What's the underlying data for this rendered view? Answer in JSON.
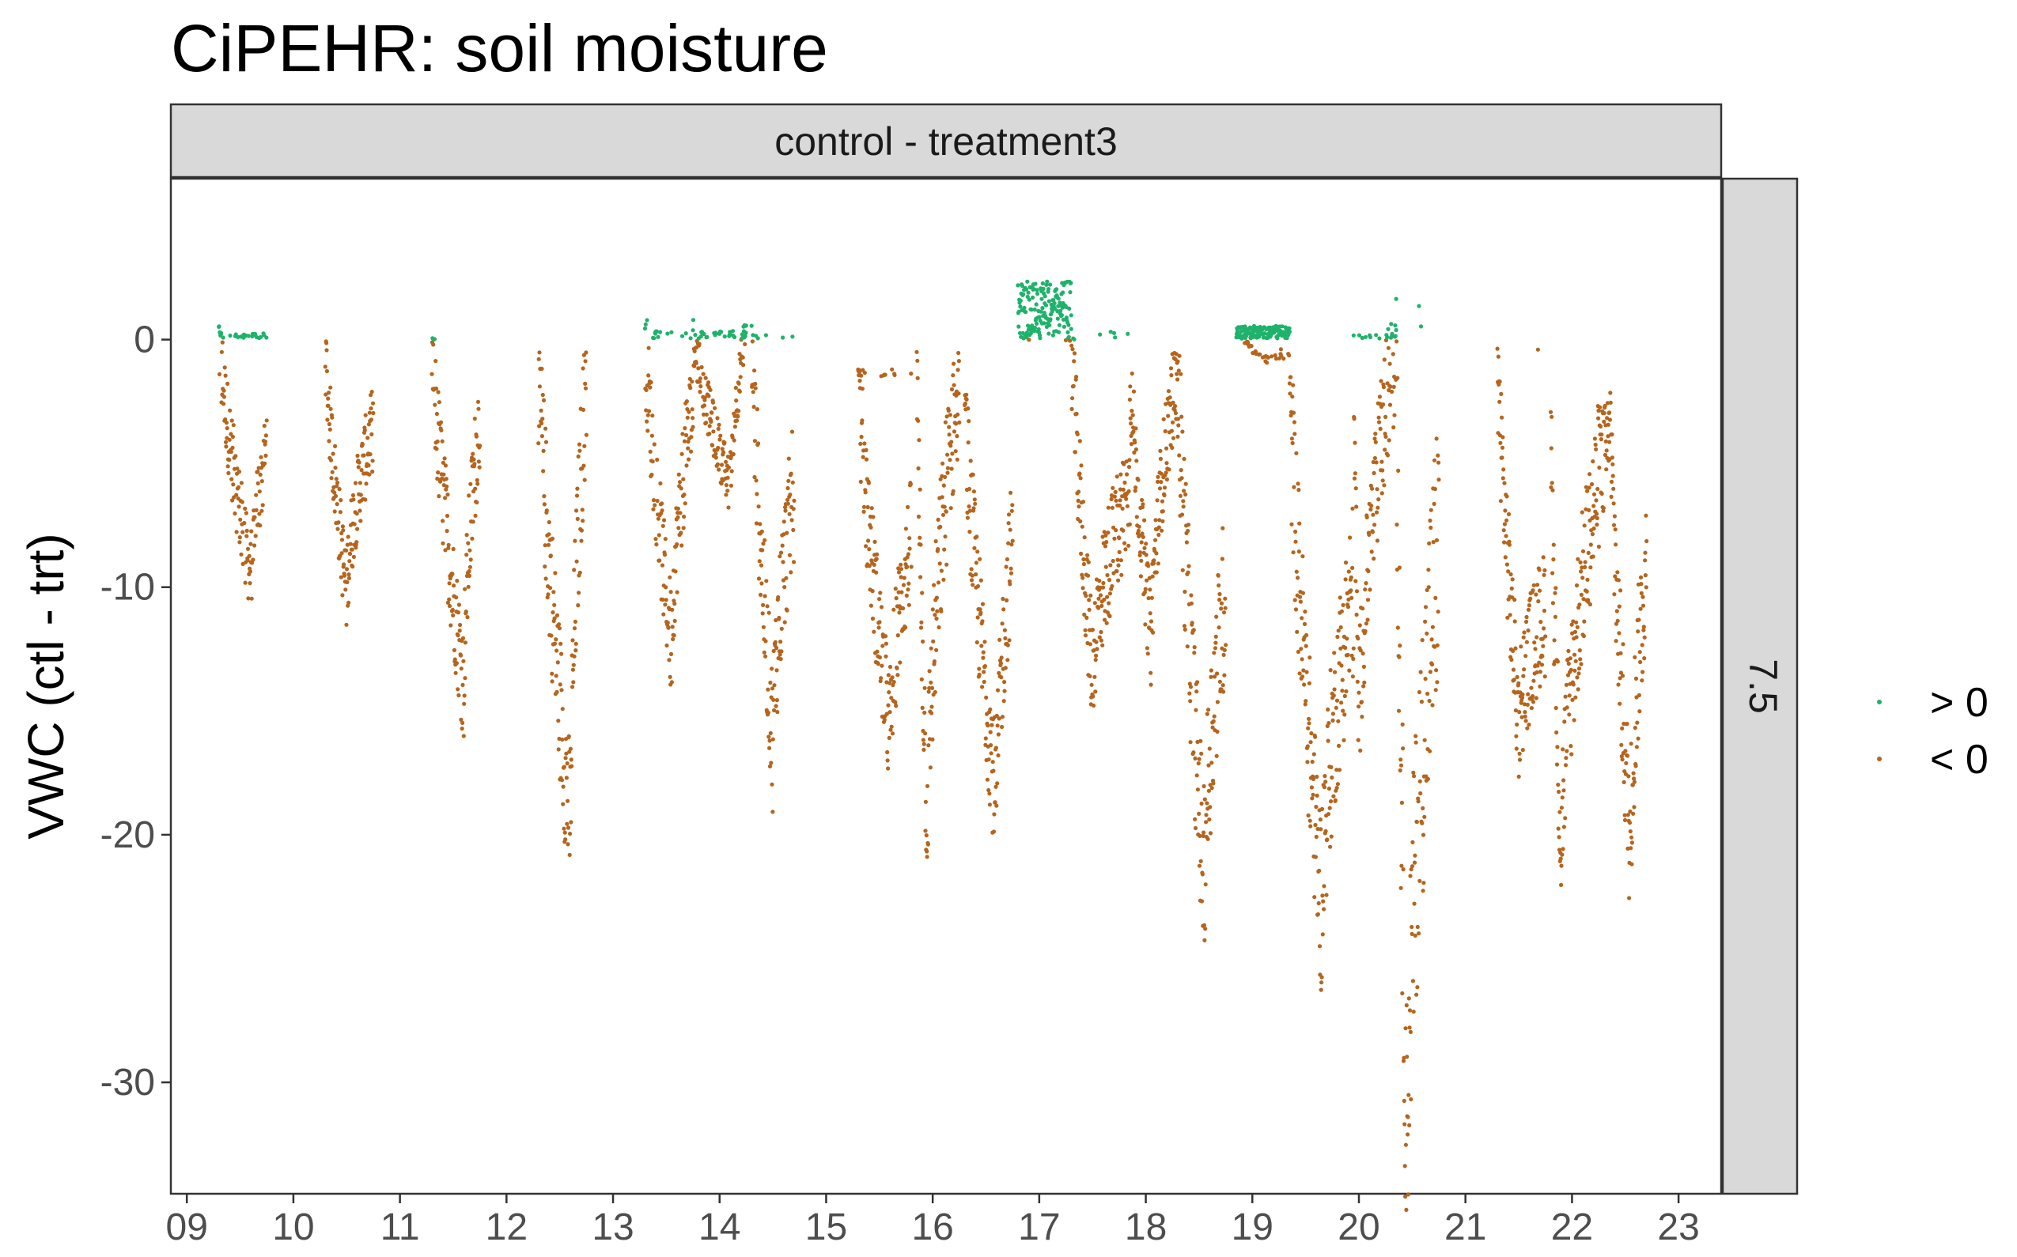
{
  "chart_data": {
    "type": "scatter",
    "title": "CiPEHR: soil moisture",
    "facet_top_label": "control - treatment3",
    "facet_right_label": "7.5",
    "ylabel": "VWC (ctl - trt)",
    "xlabel": "",
    "xlim": [
      8.85,
      23.4
    ],
    "ylim": [
      -34.5,
      6.5
    ],
    "x_ticks": [
      9,
      10,
      11,
      12,
      13,
      14,
      15,
      16,
      17,
      18,
      19,
      20,
      21,
      22,
      23
    ],
    "x_tick_labels": [
      "09",
      "10",
      "11",
      "12",
      "13",
      "14",
      "15",
      "16",
      "17",
      "18",
      "19",
      "20",
      "21",
      "22",
      "23"
    ],
    "y_ticks": [
      0,
      -10,
      -20,
      -30
    ],
    "y_tick_labels": [
      "0",
      "-10",
      "-20",
      "-30"
    ],
    "grid": false,
    "legend_position": "right",
    "series": [
      {
        "name": "> 0",
        "color": "#1fb26b"
      },
      {
        "name": "< 0",
        "color": "#b5651d"
      }
    ],
    "segments": [
      {
        "x0": 9.3,
        "x1": 9.75,
        "peak": 0.2,
        "low": -9.8,
        "recover_x": 9.6,
        "end_val": -4.5,
        "pos_frac": 0.25
      },
      {
        "x0": 10.3,
        "x1": 10.75,
        "peak": -0.5,
        "low": -10.3,
        "recover_x": 10.5,
        "end_val": -3.5,
        "pos_frac": 0
      },
      {
        "x0": 11.3,
        "x1": 11.75,
        "peak": -0.4,
        "low": -14,
        "recover_x": 11.6,
        "end_val": -3,
        "pos_frac": 0
      },
      {
        "x0": 12.3,
        "x1": 12.75,
        "peak": -1,
        "low": -19.8,
        "recover_x": 12.6,
        "end_val": -1.5,
        "pos_frac": 0
      },
      {
        "x0": 13.3,
        "x1": 13.75,
        "peak": 0.3,
        "low": -12.5,
        "recover_x": 13.55,
        "end_val": -2.5,
        "pos_frac": 0.1
      },
      {
        "x0": 13.75,
        "x1": 14.25,
        "peak": 0.3,
        "low": -6,
        "recover_x": 14.1,
        "end_val": 0.2,
        "pos_frac": 0.15
      },
      {
        "x0": 14.3,
        "x1": 14.7,
        "peak": 0.2,
        "low": -16.3,
        "recover_x": 14.5,
        "end_val": -6,
        "pos_frac": 0.05
      },
      {
        "x0": 15.3,
        "x1": 15.8,
        "peak": -1.5,
        "low": -16,
        "recover_x": 15.6,
        "end_val": -8,
        "pos_frac": 0.05
      },
      {
        "x0": 15.85,
        "x1": 16.25,
        "peak": -1,
        "low": -19.7,
        "recover_x": 15.95,
        "end_val": -1,
        "pos_frac": 0
      },
      {
        "x0": 16.3,
        "x1": 16.75,
        "peak": -2.7,
        "low": -18.8,
        "recover_x": 16.6,
        "end_val": -8,
        "pos_frac": 0
      },
      {
        "x0": 16.8,
        "x1": 17.3,
        "peak": 2.3,
        "low": 0.1,
        "recover_x": 16.85,
        "end_val": 0.3,
        "pos_frac": 0.95
      },
      {
        "x0": 17.3,
        "x1": 17.85,
        "peak": 0.5,
        "low": -13.5,
        "recover_x": 17.5,
        "end_val": -6,
        "pos_frac": 0.05
      },
      {
        "x0": 17.85,
        "x1": 18.3,
        "peak": -1,
        "low": -12.2,
        "recover_x": 18.05,
        "end_val": -1,
        "pos_frac": 0
      },
      {
        "x0": 18.3,
        "x1": 18.75,
        "peak": -1,
        "low": -22,
        "recover_x": 18.55,
        "end_val": -10,
        "pos_frac": 0
      },
      {
        "x0": 18.85,
        "x1": 19.35,
        "peak": 0.5,
        "low": -0.8,
        "recover_x": 19.1,
        "end_val": -0.5,
        "pos_frac": 0.8
      },
      {
        "x0": 19.35,
        "x1": 19.95,
        "peak": -1.8,
        "low": -23,
        "recover_x": 19.65,
        "end_val": -10,
        "pos_frac": 0
      },
      {
        "x0": 19.95,
        "x1": 20.35,
        "peak": 0.2,
        "low": -16.2,
        "recover_x": 20.0,
        "end_val": 0,
        "pos_frac": 0.1
      },
      {
        "x0": 20.35,
        "x1": 20.75,
        "peak": 1.5,
        "low": -33,
        "recover_x": 20.45,
        "end_val": -8,
        "pos_frac": 0.02
      },
      {
        "x0": 21.3,
        "x1": 21.75,
        "peak": -0.5,
        "low": -15.5,
        "recover_x": 21.5,
        "end_val": -11,
        "pos_frac": 0.01
      },
      {
        "x0": 21.8,
        "x1": 22.35,
        "peak": -3,
        "low": -20.8,
        "recover_x": 21.9,
        "end_val": -3,
        "pos_frac": 0
      },
      {
        "x0": 22.35,
        "x1": 22.7,
        "peak": -2.5,
        "low": -20.6,
        "recover_x": 22.55,
        "end_val": -9,
        "pos_frac": 0
      }
    ]
  }
}
